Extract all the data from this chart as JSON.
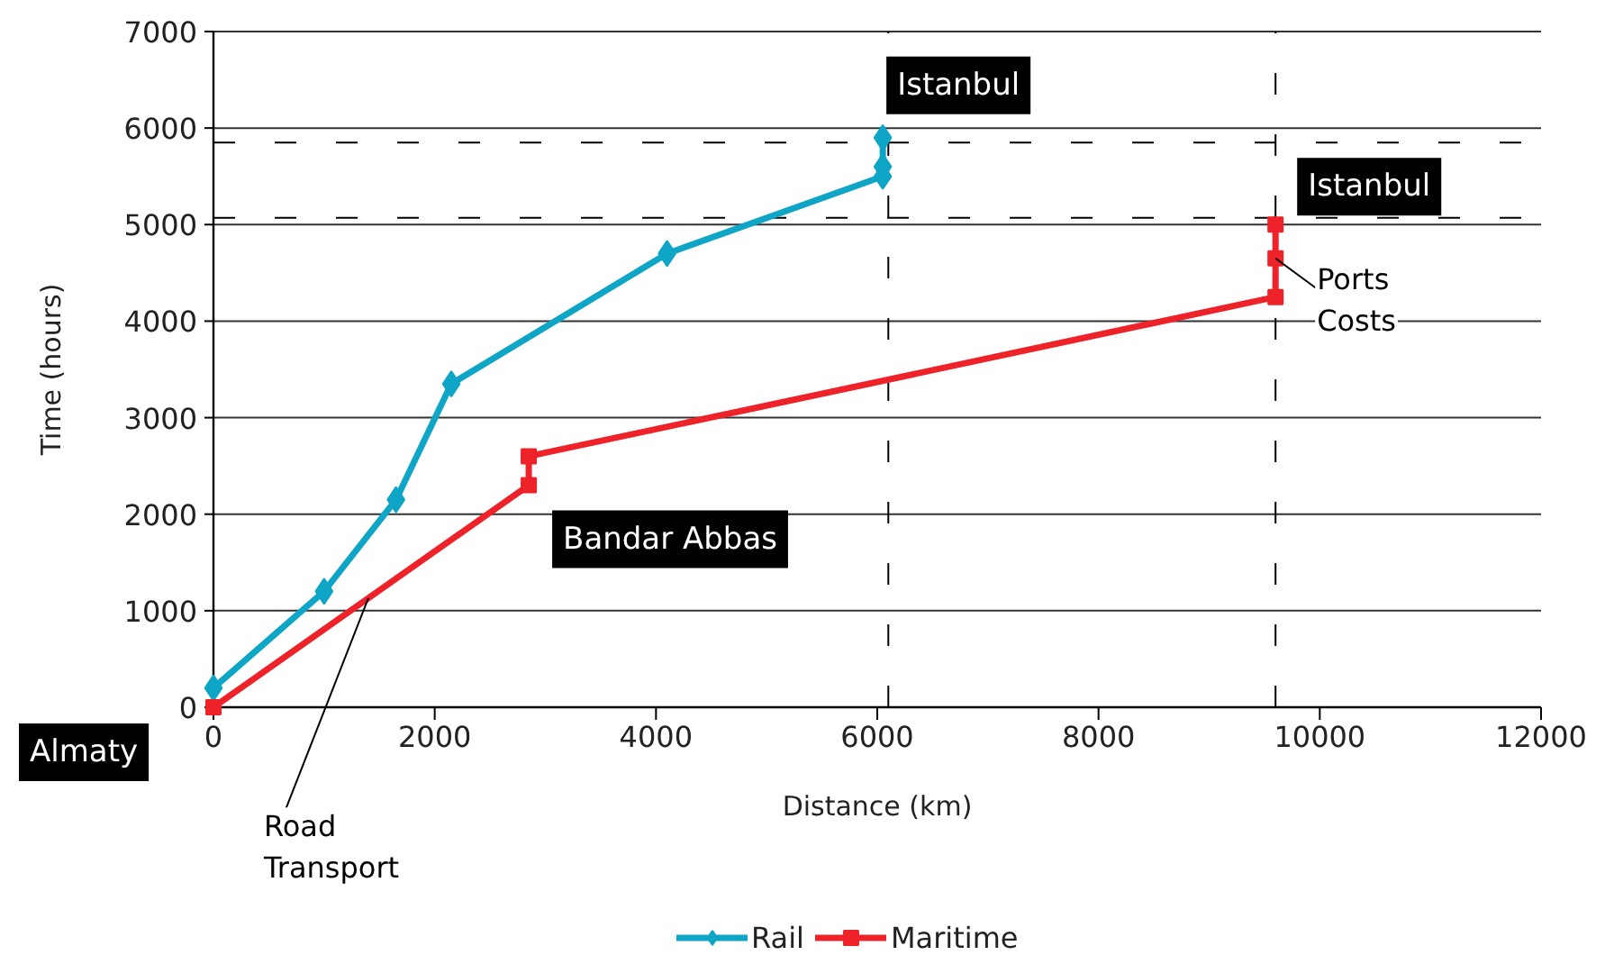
{
  "chart_data": {
    "type": "line",
    "xlabel": "Distance (km)",
    "ylabel": "Time (hours)",
    "xlim": [
      0,
      12000
    ],
    "xticks": [
      0,
      2000,
      4000,
      6000,
      8000,
      10000,
      12000
    ],
    "ylim": [
      0,
      7000
    ],
    "yticks": [
      0,
      1000,
      2000,
      3000,
      4000,
      5000,
      6000,
      7000
    ],
    "grid": "y",
    "legend": "bottom",
    "line_style": "solid",
    "series": [
      {
        "name": "Rail",
        "color": "#0ea5c6",
        "marker": "diamond",
        "x": [
          0,
          1000,
          1650,
          2150,
          4100,
          6050,
          6050,
          6050
        ],
        "values": [
          200,
          1200,
          2150,
          3350,
          4700,
          5500,
          5600,
          5900
        ]
      },
      {
        "name": "Maritime",
        "color": "#ee2229",
        "marker": "square",
        "x": [
          0,
          2850,
          2850,
          9600,
          9600,
          9600
        ],
        "values": [
          0,
          2300,
          2600,
          4250,
          4650,
          5000
        ]
      }
    ],
    "ref_lines": [
      {
        "axis": "y",
        "value": 5850,
        "label": null,
        "color": "#000000",
        "line_style": "dashed"
      },
      {
        "axis": "y",
        "value": 5070,
        "label": null,
        "color": "#000000",
        "line_style": "dashed"
      },
      {
        "axis": "x",
        "value": 6100,
        "label": null,
        "color": "#000000",
        "line_style": "dashed"
      },
      {
        "axis": "x",
        "value": 9600,
        "label": null,
        "color": "#000000",
        "line_style": "dashed"
      }
    ],
    "annotations": [
      {
        "text": "Istanbul",
        "x": 6050,
        "y": 5900
      },
      {
        "text": "Istanbul",
        "x": 9600,
        "y": 5000
      },
      {
        "text": "Bandar Abbas",
        "x": 2850,
        "y": 2300
      },
      {
        "text": "Almaty",
        "x": 0,
        "y": 0
      },
      {
        "text": "Ports\nCosts",
        "x": 9600,
        "y": 4650
      },
      {
        "text": "Road\nTransport",
        "x": 1400,
        "y": 1130
      }
    ]
  }
}
